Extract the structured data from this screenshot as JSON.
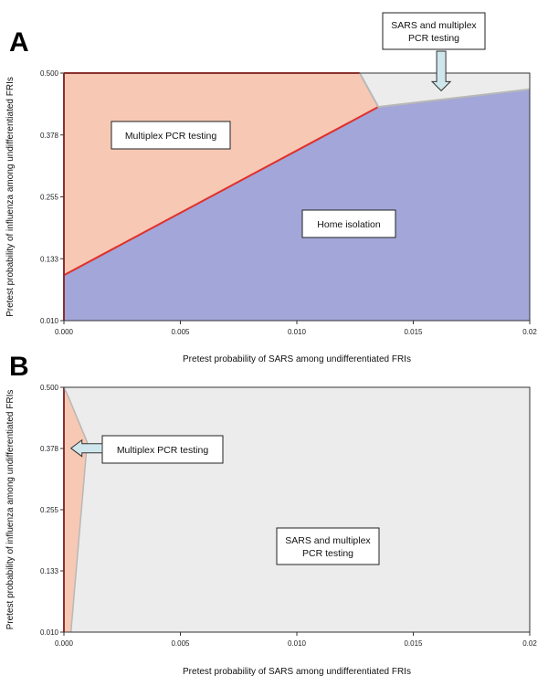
{
  "colors": {
    "multiplex": "#f7c8b4",
    "home": "#a3a6d8",
    "sars_multiplex": "#ececec",
    "boundary_red": "#e0302a",
    "boundary_gray": "#b8b8b8",
    "arrow_fill": "#cfe7ec"
  },
  "chart_data": [
    {
      "panel": "A",
      "type": "area",
      "xlabel": "Pretest probability of SARS among undifferentiated FRIs",
      "ylabel": "Pretest probability of influenza among undifferentiated FRIs",
      "xlim": [
        0,
        0.02
      ],
      "ylim": [
        0.01,
        0.5
      ],
      "x_ticks": [
        "0.000",
        "0.005",
        "0.010",
        "0.015",
        "0.02"
      ],
      "y_ticks": [
        "0.010",
        "0.133",
        "0.255",
        "0.378",
        "0.500"
      ],
      "regions": [
        {
          "name": "Multiplex PCR testing",
          "label": "Multiplex PCR testing",
          "color": "#f7c8b4",
          "polygon": [
            [
              0,
              0.01
            ],
            [
              0,
              0.5
            ],
            [
              0.0127,
              0.5
            ],
            [
              0.0135,
              0.433
            ],
            [
              0,
              0.1
            ]
          ]
        },
        {
          "name": "Home isolation",
          "label": "Home isolation",
          "color": "#a3a6d8",
          "polygon": [
            [
              0,
              0.01
            ],
            [
              0.02,
              0.01
            ],
            [
              0.02,
              0.468
            ],
            [
              0.0135,
              0.433
            ],
            [
              0,
              0.1
            ]
          ]
        },
        {
          "name": "SARS and multiplex PCR testing",
          "label": "SARS and multiplex PCR testing",
          "color": "#ececec",
          "polygon": [
            [
              0.0127,
              0.5
            ],
            [
              0.02,
              0.5
            ],
            [
              0.02,
              0.468
            ],
            [
              0.0135,
              0.433
            ]
          ]
        }
      ],
      "annotations": [
        {
          "text_lines": [
            "SARS and multiplex",
            "PCR testing"
          ],
          "arrow_target": [
            0.0162,
            0.465
          ]
        }
      ]
    },
    {
      "panel": "B",
      "type": "area",
      "xlabel": "Pretest probability of SARS among undifferentiated FRIs",
      "ylabel": "Pretest probability of influenza among undifferentiated FRIs",
      "xlim": [
        0,
        0.02
      ],
      "ylim": [
        0.01,
        0.5
      ],
      "x_ticks": [
        "0.000",
        "0.005",
        "0.010",
        "0.015",
        "0.02"
      ],
      "y_ticks": [
        "0.010",
        "0.133",
        "0.255",
        "0.378",
        "0.500"
      ],
      "regions": [
        {
          "name": "Multiplex PCR testing",
          "label": "Multiplex PCR testing",
          "color": "#f7c8b4",
          "polygon": [
            [
              0,
              0.01
            ],
            [
              0,
              0.5
            ],
            [
              0.0002,
              0.48
            ],
            [
              0.001,
              0.39
            ],
            [
              0.0003,
              0.01
            ]
          ]
        },
        {
          "name": "SARS and multiplex PCR testing",
          "label": "SARS and multiplex PCR testing",
          "color": "#ececec",
          "polygon": [
            [
              0,
              0.5
            ],
            [
              0.02,
              0.5
            ],
            [
              0.02,
              0.01
            ],
            [
              0.0003,
              0.01
            ],
            [
              0.001,
              0.39
            ],
            [
              0.0002,
              0.48
            ]
          ]
        }
      ],
      "annotations": [
        {
          "text_lines": [
            "Multiplex PCR testing"
          ],
          "arrow_target": [
            0.0003,
            0.378
          ]
        }
      ]
    }
  ]
}
